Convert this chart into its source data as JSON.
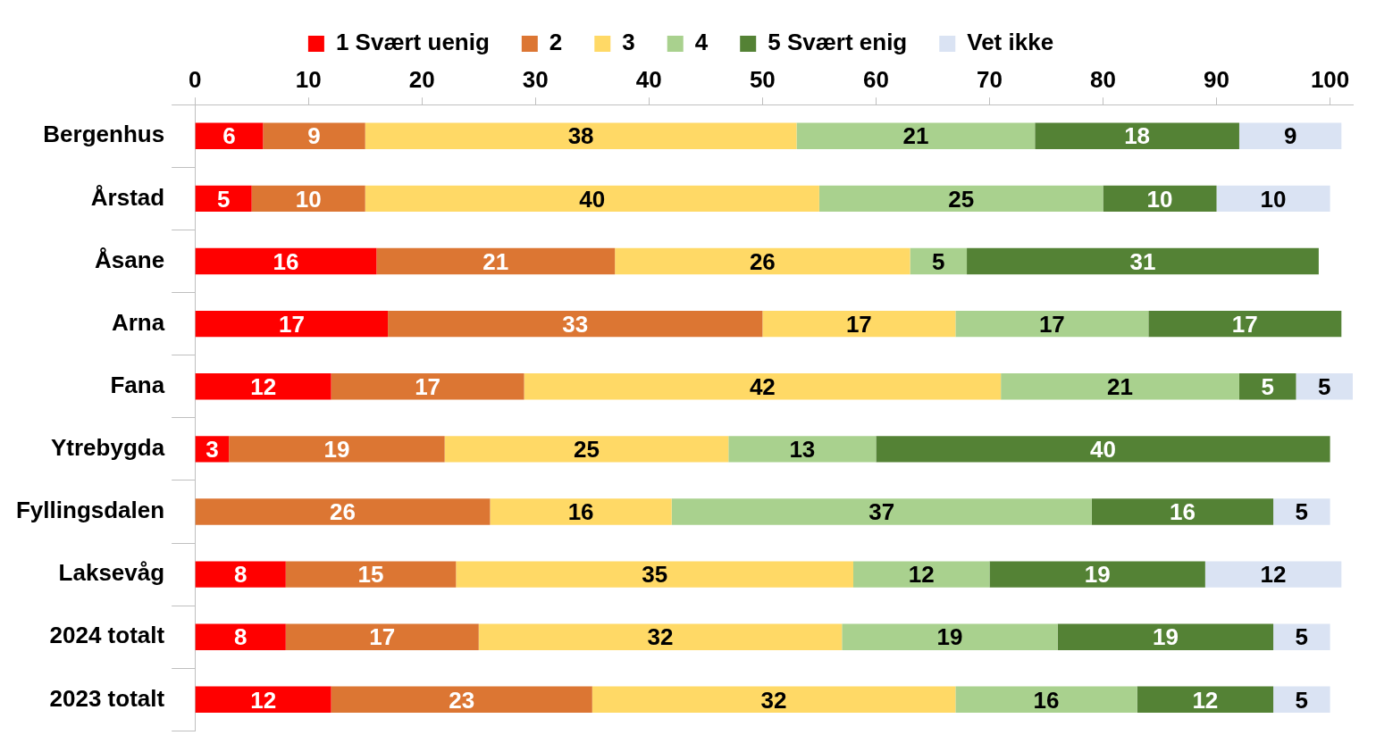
{
  "chart_data": {
    "type": "bar",
    "orientation": "horizontal",
    "stacked": true,
    "legend": "top",
    "marker": "square",
    "data_labels": true,
    "categories": [
      "Bergenhus",
      "Årstad",
      "Åsane",
      "Arna",
      "Fana",
      "Ytrebygda",
      "Fyllingsdalen",
      "Laksevåg",
      "2024 totalt",
      "2023 totalt"
    ],
    "xlim": [
      0,
      102
    ],
    "xticks": [
      0,
      10,
      20,
      30,
      40,
      50,
      60,
      70,
      80,
      90,
      100
    ],
    "series": [
      {
        "name": "1 Svært uenig",
        "color": "#ff0000",
        "values": [
          6,
          5,
          16,
          17,
          12,
          3,
          null,
          8,
          8,
          12
        ]
      },
      {
        "name": "2",
        "color": "#dc7633",
        "values": [
          9,
          10,
          21,
          33,
          17,
          19,
          26,
          15,
          17,
          23
        ]
      },
      {
        "name": "3",
        "color": "#ffd966",
        "values": [
          38,
          40,
          26,
          17,
          42,
          25,
          16,
          35,
          32,
          32
        ]
      },
      {
        "name": "4",
        "color": "#a9d18e",
        "values": [
          21,
          25,
          5,
          17,
          21,
          13,
          37,
          12,
          19,
          16
        ]
      },
      {
        "name": "5 Svært enig",
        "color": "#548235",
        "values": [
          18,
          10,
          31,
          17,
          5,
          40,
          16,
          19,
          19,
          12
        ]
      },
      {
        "name": "Vet ikke",
        "color": "#dae3f3",
        "values": [
          9,
          10,
          null,
          null,
          5,
          null,
          5,
          12,
          5,
          5
        ]
      }
    ]
  }
}
